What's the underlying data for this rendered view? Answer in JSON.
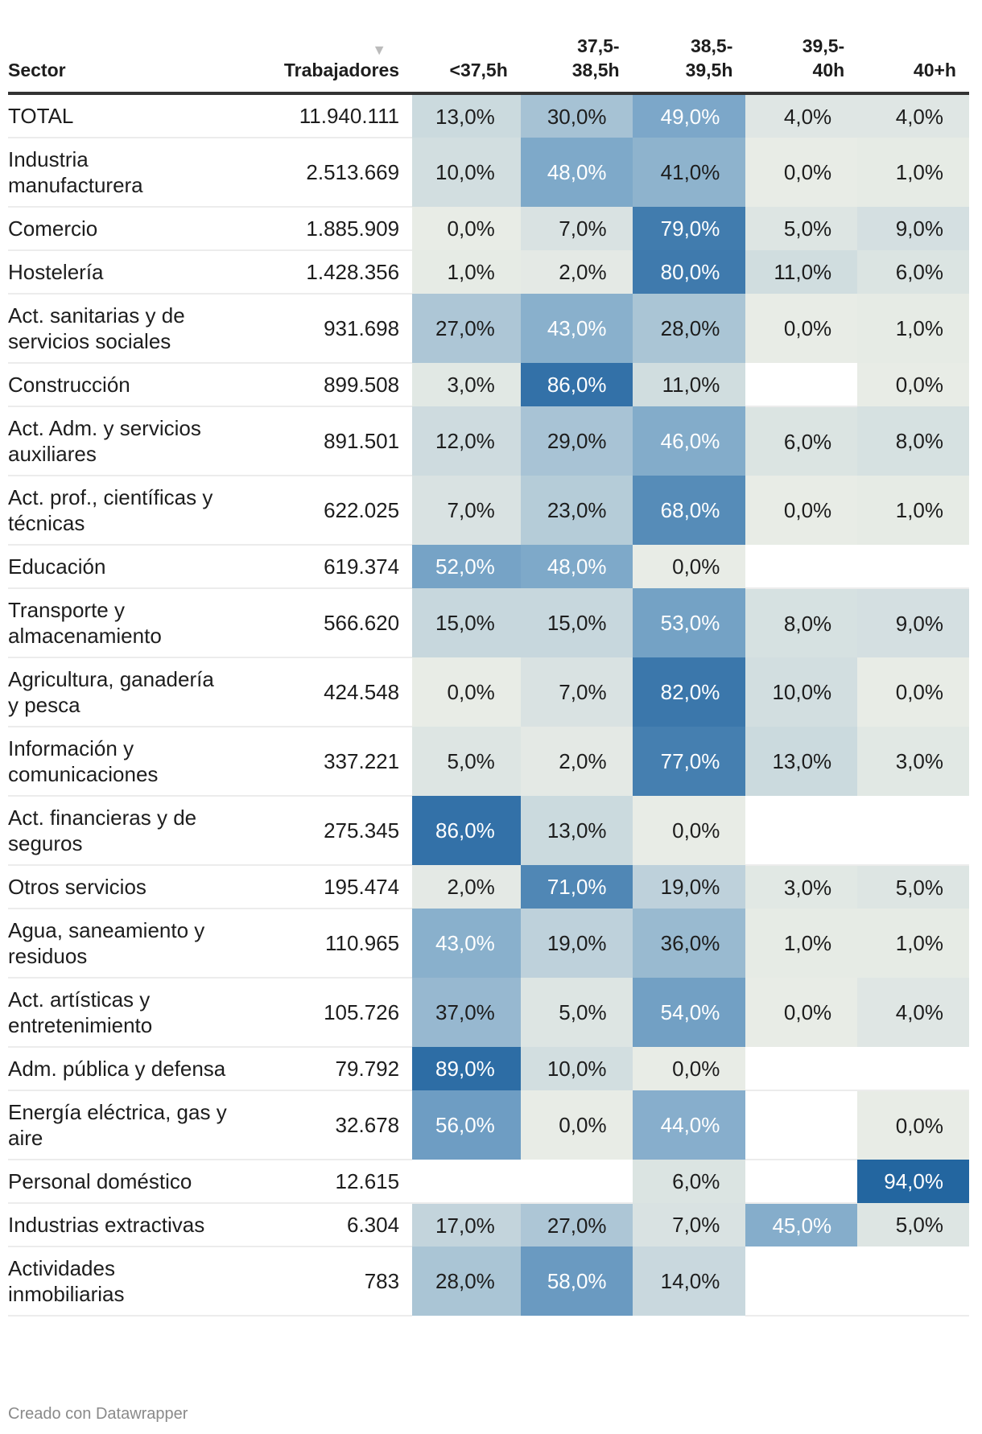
{
  "chart_data": {
    "type": "table",
    "columns": [
      "Sector",
      "Trabajadores",
      "<37,5h",
      "37,5-38,5h",
      "38,5-39,5h",
      "39,5-40h",
      "40+h"
    ],
    "header_lines": [
      [
        "Sector"
      ],
      [
        "Trabajadores"
      ],
      [
        "<37,5h"
      ],
      [
        "37,5-",
        "38,5h"
      ],
      [
        "38,5-",
        "39,5h"
      ],
      [
        "39,5-",
        "40h"
      ],
      [
        "40+h"
      ]
    ],
    "sort_indicator": "▼",
    "rows": [
      {
        "sector": "TOTAL",
        "workers": "11.940.111",
        "values": [
          13,
          30,
          49,
          4,
          4
        ]
      },
      {
        "sector": "Industria manufacturera",
        "workers": "2.513.669",
        "values": [
          10,
          48,
          41,
          0,
          1
        ]
      },
      {
        "sector": "Comercio",
        "workers": "1.885.909",
        "values": [
          0,
          7,
          79,
          5,
          9
        ]
      },
      {
        "sector": "Hostelería",
        "workers": "1.428.356",
        "values": [
          1,
          2,
          80,
          11,
          6
        ]
      },
      {
        "sector": "Act. sanitarias y de servicios sociales",
        "workers": "931.698",
        "values": [
          27,
          43,
          28,
          0,
          1
        ]
      },
      {
        "sector": "Construcción",
        "workers": "899.508",
        "values": [
          3,
          86,
          11,
          null,
          0
        ]
      },
      {
        "sector": "Act. Adm. y servicios auxiliares",
        "workers": "891.501",
        "values": [
          12,
          29,
          46,
          6,
          8
        ]
      },
      {
        "sector": "Act. prof., científicas y técnicas",
        "workers": "622.025",
        "values": [
          7,
          23,
          68,
          0,
          1
        ]
      },
      {
        "sector": "Educación",
        "workers": "619.374",
        "values": [
          52,
          48,
          0,
          null,
          null
        ]
      },
      {
        "sector": "Transporte y almacenamiento",
        "workers": "566.620",
        "values": [
          15,
          15,
          53,
          8,
          9
        ]
      },
      {
        "sector": "Agricultura, ganadería y pesca",
        "workers": "424.548",
        "values": [
          0,
          7,
          82,
          10,
          0
        ]
      },
      {
        "sector": "Información y comunicaciones",
        "workers": "337.221",
        "values": [
          5,
          2,
          77,
          13,
          3
        ]
      },
      {
        "sector": "Act. financieras y de seguros",
        "workers": "275.345",
        "values": [
          86,
          13,
          0,
          null,
          null
        ]
      },
      {
        "sector": "Otros servicios",
        "workers": "195.474",
        "values": [
          2,
          71,
          19,
          3,
          5
        ]
      },
      {
        "sector": "Agua, saneamiento y residuos",
        "workers": "110.965",
        "values": [
          43,
          19,
          36,
          1,
          1
        ]
      },
      {
        "sector": "Act. artísticas y entretenimiento",
        "workers": "105.726",
        "values": [
          37,
          5,
          54,
          0,
          4
        ]
      },
      {
        "sector": "Adm. pública y defensa",
        "workers": "79.792",
        "values": [
          89,
          10,
          0,
          null,
          null
        ]
      },
      {
        "sector": "Energía eléctrica, gas y aire",
        "workers": "32.678",
        "values": [
          56,
          0,
          44,
          null,
          0
        ]
      },
      {
        "sector": "Personal doméstico",
        "workers": "12.615",
        "values": [
          null,
          null,
          6,
          null,
          94
        ]
      },
      {
        "sector": "Industrias extractivas",
        "workers": "6.304",
        "values": [
          17,
          27,
          7,
          45,
          5
        ]
      },
      {
        "sector": "Actividades inmobiliarias",
        "workers": "783",
        "values": [
          28,
          58,
          14,
          null,
          null
        ]
      }
    ],
    "color_scale": {
      "low": "#e8ece6",
      "mid": "#7aa6c8",
      "high": "#175d9b"
    }
  },
  "footer": "Creado con Datawrapper"
}
